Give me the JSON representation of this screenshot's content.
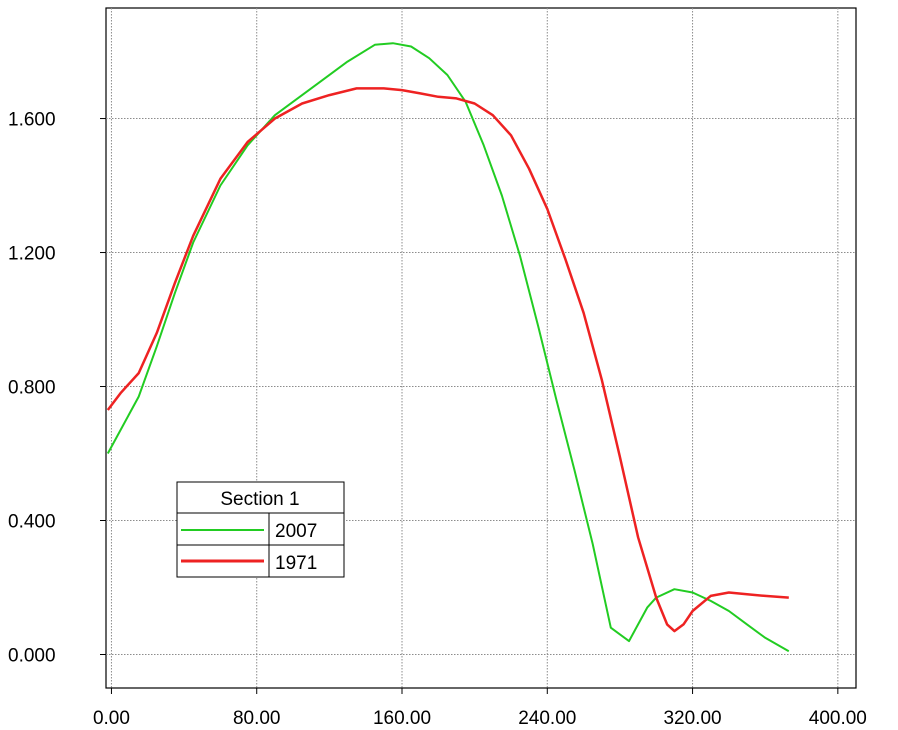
{
  "chart_data": {
    "type": "line",
    "title": "",
    "xlabel": "",
    "ylabel": "",
    "xlim": [
      -3,
      410
    ],
    "ylim": [
      -0.1,
      1.93
    ],
    "grid": true,
    "x_ticks": [
      "0.00",
      "80.00",
      "160.00",
      "240.00",
      "320.00",
      "400.00"
    ],
    "y_ticks": [
      "0.000",
      "0.400",
      "0.800",
      "1.200",
      "1.600"
    ],
    "legend": {
      "title": "Section 1",
      "placement": "lower-left"
    },
    "series": [
      {
        "name": "2007",
        "color": "#22cc22",
        "x": [
          -2,
          5,
          15,
          25,
          35,
          45,
          60,
          75,
          90,
          100,
          115,
          130,
          145,
          155,
          165,
          175,
          185,
          195,
          205,
          215,
          225,
          235,
          245,
          255,
          265,
          275,
          285,
          290,
          295,
          300,
          310,
          320,
          330,
          340,
          350,
          360,
          373
        ],
        "y": [
          0.6,
          0.67,
          0.77,
          0.92,
          1.08,
          1.23,
          1.4,
          1.52,
          1.61,
          1.65,
          1.71,
          1.77,
          1.82,
          1.825,
          1.815,
          1.78,
          1.73,
          1.65,
          1.52,
          1.37,
          1.19,
          0.98,
          0.76,
          0.55,
          0.33,
          0.08,
          0.04,
          0.09,
          0.14,
          0.17,
          0.195,
          0.185,
          0.16,
          0.13,
          0.09,
          0.05,
          0.01
        ]
      },
      {
        "name": "1971",
        "color": "#ee2222",
        "x": [
          -2,
          5,
          15,
          25,
          35,
          45,
          60,
          75,
          90,
          105,
          120,
          135,
          150,
          160,
          170,
          180,
          190,
          200,
          210,
          220,
          230,
          240,
          250,
          260,
          270,
          280,
          290,
          300,
          306,
          310,
          315,
          320,
          330,
          340,
          350,
          360,
          373
        ],
        "y": [
          0.73,
          0.78,
          0.84,
          0.96,
          1.11,
          1.25,
          1.42,
          1.53,
          1.6,
          1.645,
          1.67,
          1.69,
          1.69,
          1.685,
          1.675,
          1.665,
          1.66,
          1.645,
          1.61,
          1.55,
          1.45,
          1.33,
          1.18,
          1.02,
          0.82,
          0.59,
          0.35,
          0.17,
          0.09,
          0.07,
          0.09,
          0.13,
          0.175,
          0.185,
          0.18,
          0.175,
          0.17
        ]
      }
    ]
  }
}
